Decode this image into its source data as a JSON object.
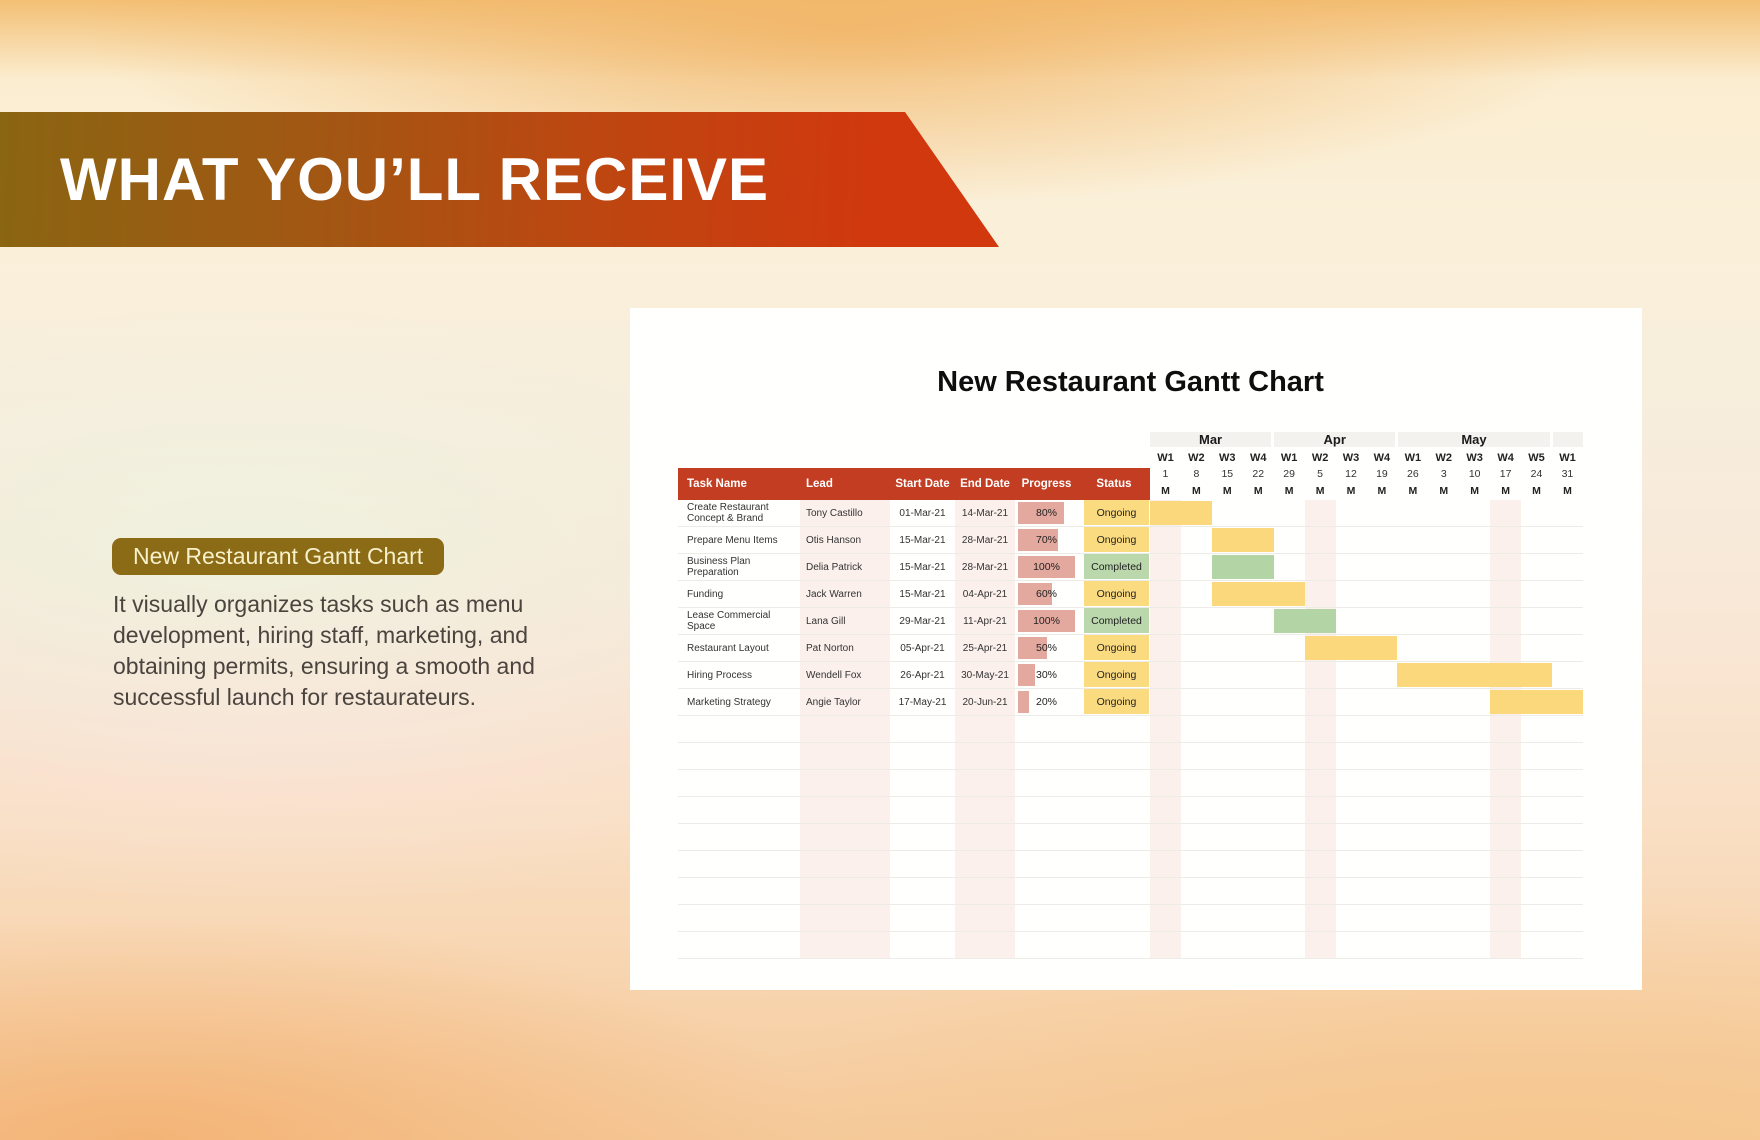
{
  "banner": {
    "title": "WHAT YOU’LL RECEIVE"
  },
  "intro": {
    "badge": "New Restaurant Gantt Chart",
    "description": "It visually organizes tasks such as menu development, hiring staff, marketing, and obtaining permits, ensuring a smooth and successful launch for restaurateurs."
  },
  "chart_data": {
    "type": "table",
    "subtype": "gantt",
    "title": "New Restaurant Gantt Chart",
    "columns": [
      "Task Name",
      "Lead",
      "Start Date",
      "End Date",
      "Progress",
      "Status"
    ],
    "timeline": {
      "months": [
        {
          "label": "Mar",
          "span": 4
        },
        {
          "label": "Apr",
          "span": 4
        },
        {
          "label": "May",
          "span": 5
        },
        {
          "label": "",
          "span": 1
        }
      ],
      "weeks": [
        "W1",
        "W2",
        "W3",
        "W4",
        "W1",
        "W2",
        "W3",
        "W4",
        "W1",
        "W2",
        "W3",
        "W4",
        "W5",
        "W1"
      ],
      "dates": [
        "1",
        "8",
        "15",
        "22",
        "29",
        "5",
        "12",
        "19",
        "26",
        "3",
        "10",
        "17",
        "24",
        "31"
      ],
      "days": [
        "M",
        "M",
        "M",
        "M",
        "M",
        "M",
        "M",
        "M",
        "M",
        "M",
        "M",
        "M",
        "M",
        "M"
      ]
    },
    "tasks": [
      {
        "name": "Create Restaurant Concept & Brand",
        "lead": "Tony Castillo",
        "start": "01-Mar-21",
        "end": "14-Mar-21",
        "progress": 80,
        "status": "Ongoing",
        "bar": {
          "start": 1,
          "end": 2,
          "color": "yellow"
        }
      },
      {
        "name": "Prepare Menu Items",
        "lead": "Otis Hanson",
        "start": "15-Mar-21",
        "end": "28-Mar-21",
        "progress": 70,
        "status": "Ongoing",
        "bar": {
          "start": 3,
          "end": 4,
          "color": "yellow"
        }
      },
      {
        "name": "Business Plan Preparation",
        "lead": "Delia Patrick",
        "start": "15-Mar-21",
        "end": "28-Mar-21",
        "progress": 100,
        "status": "Completed",
        "bar": {
          "start": 3,
          "end": 4,
          "color": "green"
        }
      },
      {
        "name": "Funding",
        "lead": "Jack Warren",
        "start": "15-Mar-21",
        "end": "04-Apr-21",
        "progress": 60,
        "status": "Ongoing",
        "bar": {
          "start": 3,
          "end": 5,
          "color": "yellow"
        }
      },
      {
        "name": "Lease Commercial Space",
        "lead": "Lana Gill",
        "start": "29-Mar-21",
        "end": "11-Apr-21",
        "progress": 100,
        "status": "Completed",
        "bar": {
          "start": 5,
          "end": 6,
          "color": "green"
        }
      },
      {
        "name": "Restaurant Layout",
        "lead": "Pat Norton",
        "start": "05-Apr-21",
        "end": "25-Apr-21",
        "progress": 50,
        "status": "Ongoing",
        "bar": {
          "start": 6,
          "end": 8,
          "color": "yellow"
        }
      },
      {
        "name": "Hiring Process",
        "lead": "Wendell Fox",
        "start": "26-Apr-21",
        "end": "30-May-21",
        "progress": 30,
        "status": "Ongoing",
        "bar": {
          "start": 9,
          "end": 13,
          "color": "yellow"
        }
      },
      {
        "name": "Marketing Strategy",
        "lead": "Angie Taylor",
        "start": "17-May-21",
        "end": "20-Jun-21",
        "progress": 20,
        "status": "Ongoing",
        "bar": {
          "start": 12,
          "end": 14,
          "color": "yellow"
        }
      }
    ],
    "colors": {
      "header_bg": "#C33D22",
      "header_text": "#FFFFFF",
      "bar_yellow": "#FAD87B",
      "bar_green": "#B3D4A5",
      "status_ongoing": "#FBDB80",
      "status_completed": "#BBD8AC",
      "progress_fill": "#E3A89E",
      "column_tint": "#FBF0EC",
      "grid_line": "#EDEBE8"
    }
  },
  "colors": {
    "banner_left": "#8A6512",
    "banner_right": "#D1380E",
    "badge_bg": "#8C6B16",
    "badge_text": "#F7F1CB"
  }
}
